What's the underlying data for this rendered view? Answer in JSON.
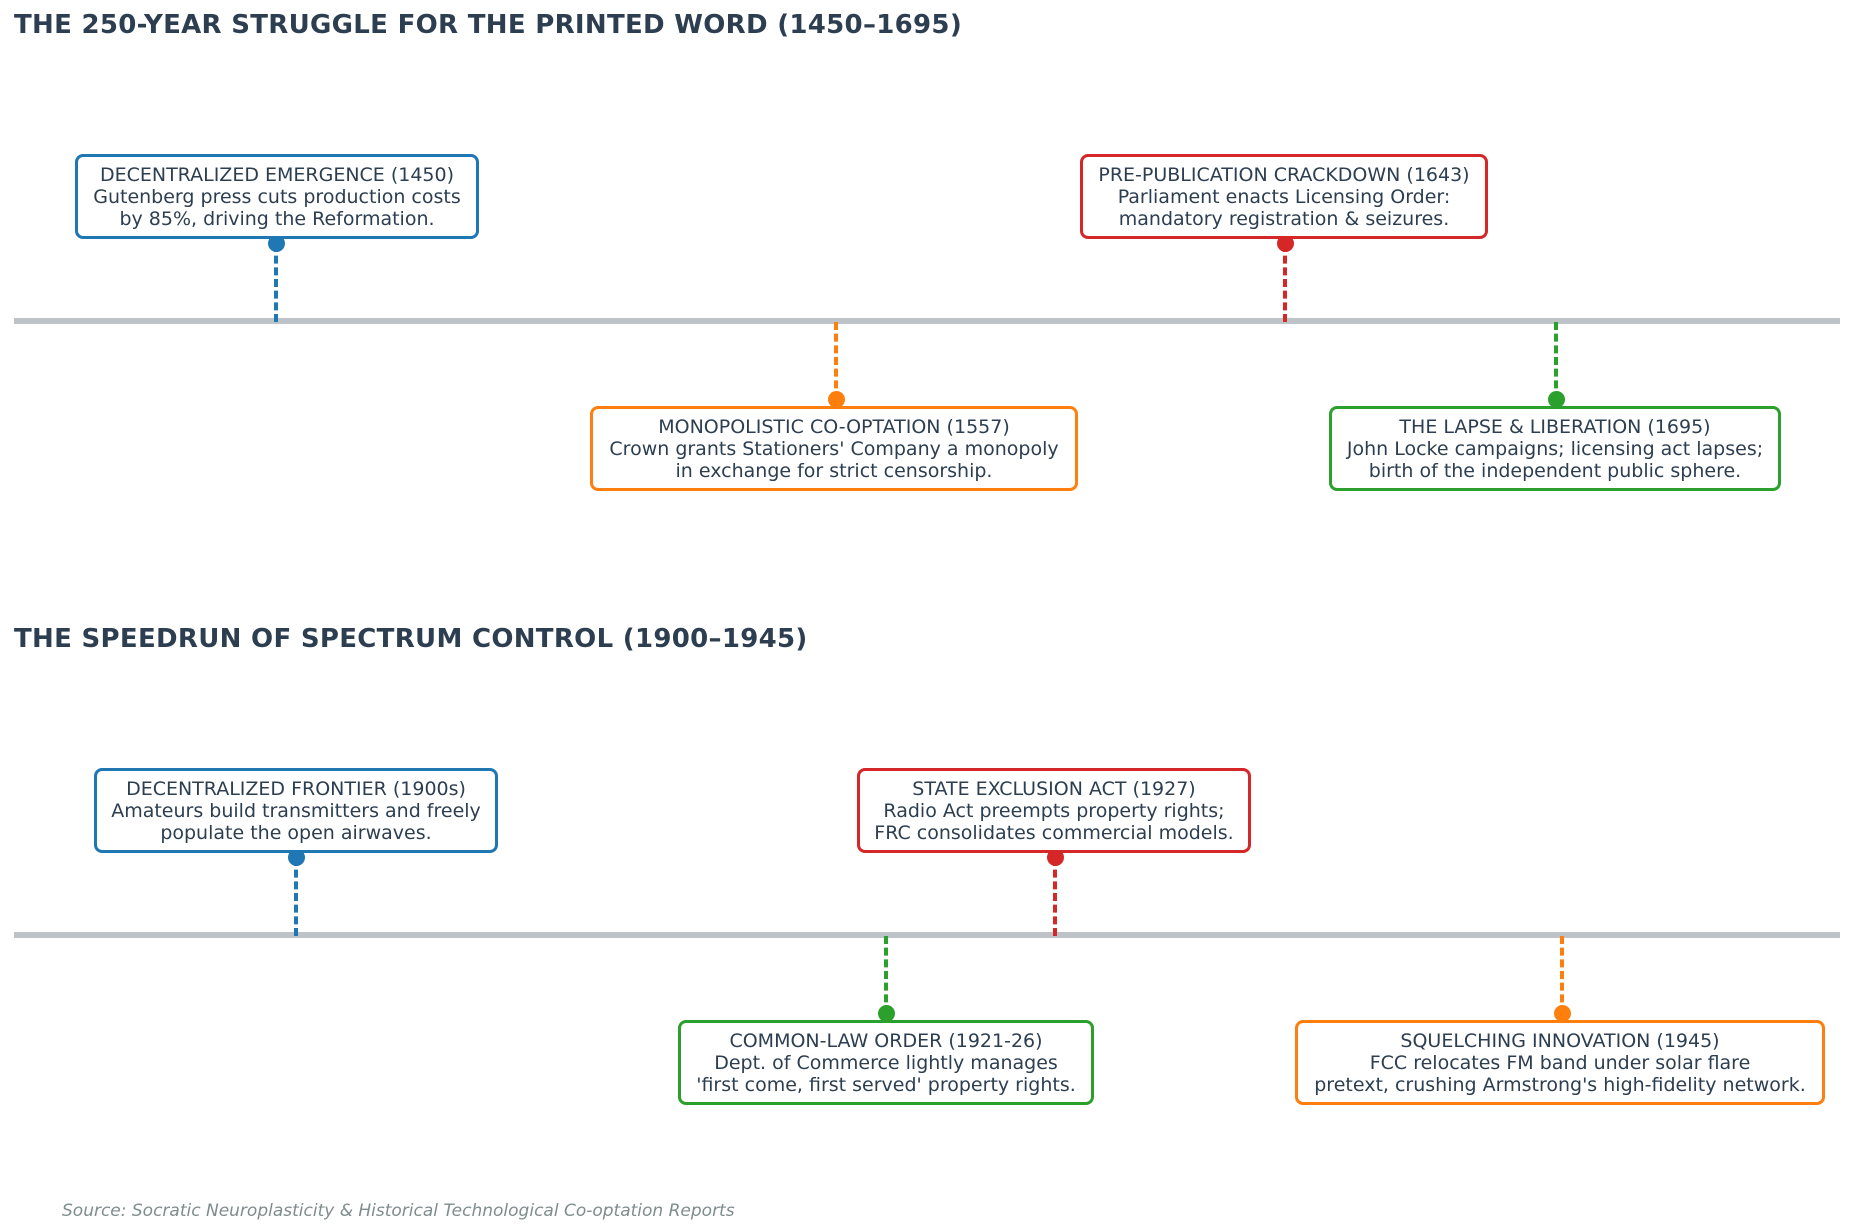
{
  "colors": {
    "blue": "#1f77b4",
    "orange": "#ff7f0e",
    "red": "#d62728",
    "green": "#2ca02c",
    "axis": "#bdc3c7",
    "text": "#2c3e50"
  },
  "timelines": [
    {
      "title": "THE 250-YEAR STRUGGLE FOR THE PRINTED WORD (1450–1695)",
      "events": [
        {
          "heading": "DECENTRALIZED EMERGENCE (1450)",
          "line1": "Gutenberg press cuts production costs",
          "line2": "by 85%, driving the Reformation."
        },
        {
          "heading": "MONOPOLISTIC CO-OPTATION (1557)",
          "line1": "Crown grants Stationers' Company a monopoly",
          "line2": "in exchange for strict censorship."
        },
        {
          "heading": "PRE-PUBLICATION CRACKDOWN (1643)",
          "line1": "Parliament enacts Licensing Order:",
          "line2": "mandatory registration & seizures."
        },
        {
          "heading": "THE LAPSE & LIBERATION (1695)",
          "line1": "John Locke campaigns; licensing act lapses;",
          "line2": "birth of the independent public sphere."
        }
      ]
    },
    {
      "title": "THE SPEEDRUN OF SPECTRUM CONTROL (1900–1945)",
      "events": [
        {
          "heading": "DECENTRALIZED FRONTIER (1900s)",
          "line1": "Amateurs build transmitters and freely",
          "line2": "populate the open airwaves."
        },
        {
          "heading": "COMMON-LAW ORDER (1921-26)",
          "line1": "Dept. of Commerce lightly manages",
          "line2": "'first come, first served' property rights."
        },
        {
          "heading": "STATE EXCLUSION ACT (1927)",
          "line1": "Radio Act preempts property rights;",
          "line2": "FRC consolidates commercial models."
        },
        {
          "heading": "SQUELCHING INNOVATION (1945)",
          "line1": "FCC relocates FM band under solar flare",
          "line2": "pretext, crushing Armstrong's high-fidelity network."
        }
      ]
    }
  ],
  "source": "Source: Socratic Neuroplasticity & Historical Technological Co-optation Reports"
}
